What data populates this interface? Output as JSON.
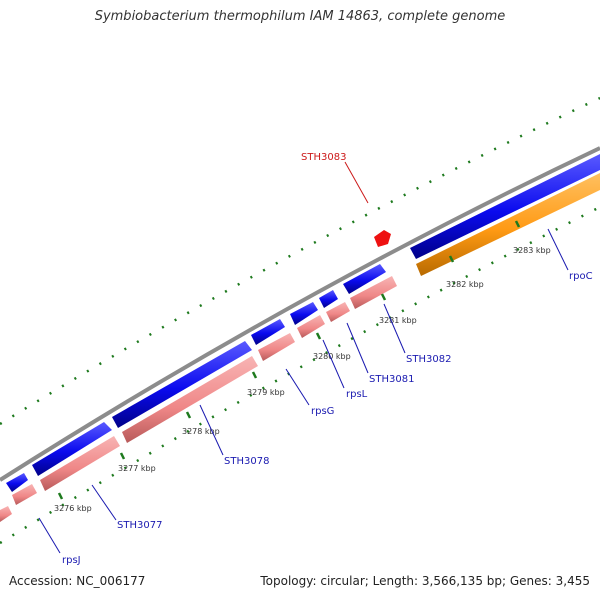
{
  "map": {
    "title": "Symbiobacterium thermophilum IAM 14863, complete genome",
    "accession_label": "Accession: NC_006177",
    "summary_label": "Topology: circular; Length: 3,566,135 bp; Genes: 3,455"
  },
  "scale_labels": [
    "3276 kbp",
    "3277 kbp",
    "3278 kbp",
    "3279 kbp",
    "3280 kbp",
    "3281 kbp",
    "3282 kbp",
    "3283 kbp"
  ],
  "gene_labels": [
    "rpsJ",
    "STH3077",
    "STH3078",
    "rpsG",
    "rpsL",
    "STH3081",
    "STH3082",
    "rpoC",
    "STH3083"
  ],
  "colors": {
    "backbone": "#8c8c8c",
    "forward_gene": "#0a0aee",
    "rna_feature": "#f08a8a",
    "rpoC_feature": "#ff9a14",
    "highlight_gene": "#ee1111",
    "tick": "#1e7a1e",
    "gene_label": "#1a1ab0",
    "highlight_label": "#cc1a1a"
  }
}
